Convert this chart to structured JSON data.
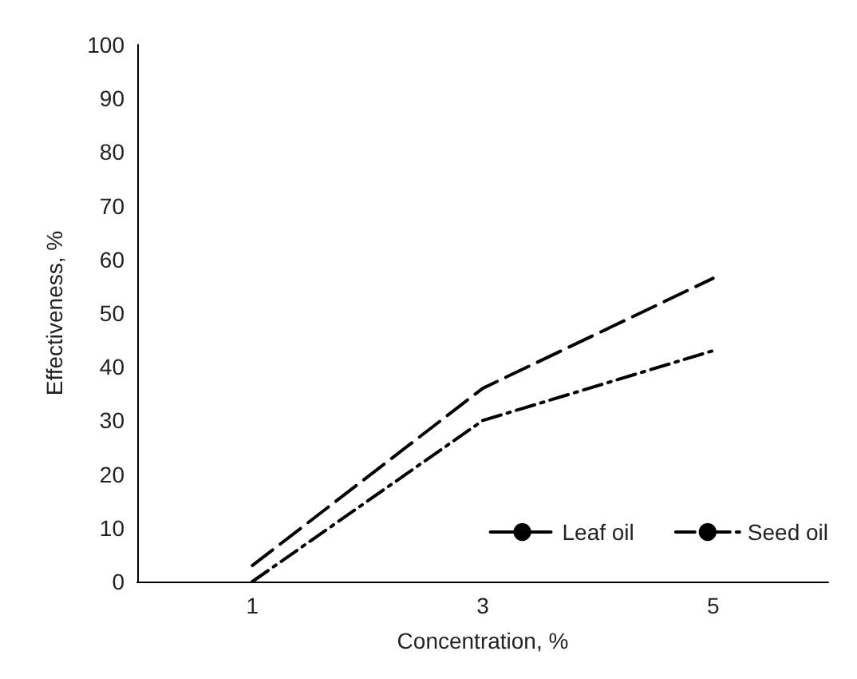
{
  "chart_data": {
    "type": "line",
    "xlabel": "Concentration, %",
    "ylabel": "Effectiveness, %",
    "categories": [
      "1",
      "3",
      "5"
    ],
    "series": [
      {
        "name": "Leaf oil",
        "color": "#000000",
        "line_style": "dashed",
        "values": [
          3,
          36,
          56.5
        ]
      },
      {
        "name": "Seed oil",
        "color": "#000000",
        "line_style": "dashdot",
        "values": [
          0,
          30,
          43
        ]
      }
    ],
    "ylim": [
      0,
      100
    ],
    "yticks": [
      0,
      10,
      20,
      30,
      40,
      50,
      60,
      70,
      80,
      90,
      100
    ],
    "grid": false,
    "legend": "bottom right",
    "marker": "none"
  }
}
